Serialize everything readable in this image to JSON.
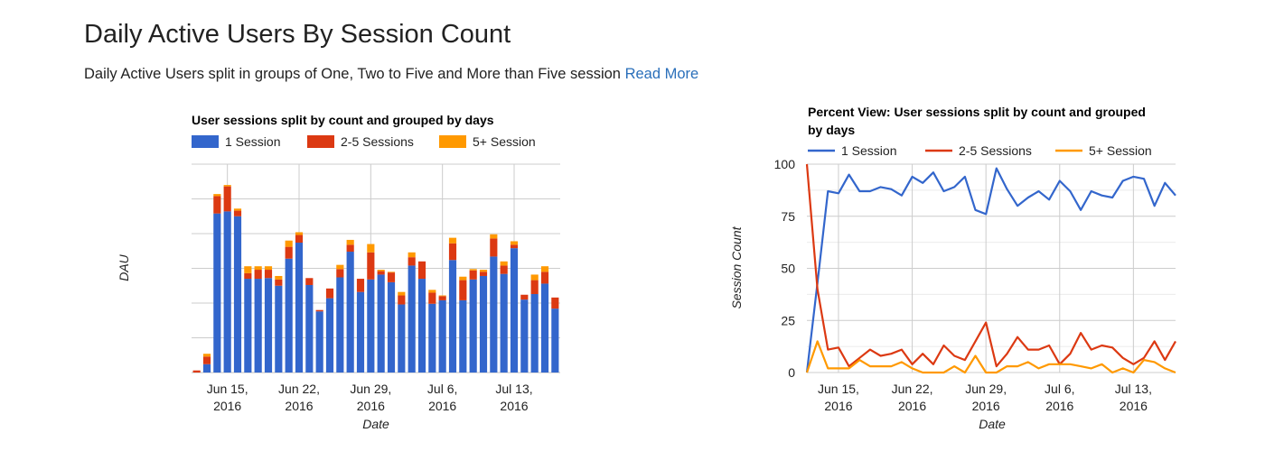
{
  "page": {
    "title": "Daily Active Users By Session Count",
    "subtitle": "Daily Active Users split in groups of One, Two to Five and More than Five session",
    "read_more": "Read More"
  },
  "colors": {
    "one": "#3366cc",
    "two_five": "#dc3912",
    "five_plus": "#ff9900",
    "grid": "#cccccc"
  },
  "chart_data": [
    {
      "type": "bar",
      "stacked": true,
      "title": "User sessions split by count and grouped by days",
      "xlabel": "Date",
      "ylabel": "DAU",
      "y_tick_labels_visible": false,
      "ylim": [
        0,
        300
      ],
      "x_ticks": [
        {
          "day": 3,
          "line1": "Jun 15,",
          "line2": "2016"
        },
        {
          "day": 10,
          "line1": "Jun 22,",
          "line2": "2016"
        },
        {
          "day": 17,
          "line1": "Jun 29,",
          "line2": "2016"
        },
        {
          "day": 24,
          "line1": "Jul 6,",
          "line2": "2016"
        },
        {
          "day": 31,
          "line1": "Jul 13,",
          "line2": "2016"
        }
      ],
      "series": [
        {
          "name": "1 Session",
          "color_key": "one",
          "values": [
            0,
            12,
            229,
            232,
            225,
            135,
            135,
            136,
            125,
            164,
            187,
            126,
            88,
            107,
            137,
            174,
            116,
            134,
            141,
            130,
            98,
            154,
            135,
            99,
            104,
            162,
            104,
            134,
            139,
            167,
            142,
            179,
            105,
            113,
            128,
            92
          ]
        },
        {
          "name": "2-5 Sessions",
          "color_key": "two_five",
          "values": [
            3,
            11,
            25,
            36,
            8,
            8,
            13,
            12,
            9,
            17,
            11,
            10,
            2,
            14,
            12,
            10,
            19,
            39,
            5,
            14,
            13,
            12,
            25,
            16,
            6,
            24,
            29,
            13,
            6,
            26,
            12,
            5,
            7,
            20,
            17,
            16
          ]
        },
        {
          "name": "5+ Session",
          "color_key": "five_plus",
          "values": [
            0,
            4,
            3,
            2,
            3,
            10,
            5,
            5,
            5,
            9,
            4,
            0,
            0,
            0,
            6,
            7,
            0,
            12,
            2,
            1,
            5,
            7,
            0,
            4,
            1,
            8,
            5,
            2,
            3,
            6,
            6,
            5,
            0,
            8,
            8,
            0
          ]
        }
      ]
    },
    {
      "type": "line",
      "title": "Percent View: User sessions split by count and grouped by days",
      "title_line1": "Percent View: User sessions split by count and grouped",
      "title_line2": "by days",
      "xlabel": "Date",
      "ylabel": "Session Count",
      "ylim": [
        0,
        100
      ],
      "y_ticks": [
        0,
        25,
        50,
        75,
        100
      ],
      "x_ticks": [
        {
          "day": 3,
          "line1": "Jun 15,",
          "line2": "2016"
        },
        {
          "day": 10,
          "line1": "Jun 22,",
          "line2": "2016"
        },
        {
          "day": 17,
          "line1": "Jun 29,",
          "line2": "2016"
        },
        {
          "day": 24,
          "line1": "Jul 6,",
          "line2": "2016"
        },
        {
          "day": 31,
          "line1": "Jul 13,",
          "line2": "2016"
        }
      ],
      "series": [
        {
          "name": "1 Session",
          "color_key": "one",
          "values": [
            0,
            43,
            87,
            86,
            95,
            87,
            87,
            89,
            88,
            85,
            94,
            91,
            96,
            87,
            89,
            94,
            78,
            76,
            98,
            88,
            80,
            84,
            87,
            83,
            92,
            87,
            78,
            87,
            85,
            84,
            92,
            94,
            93,
            80,
            91,
            85
          ]
        },
        {
          "name": "2-5 Sessions",
          "color_key": "two_five",
          "values": [
            100,
            40,
            11,
            12,
            3,
            7,
            11,
            8,
            9,
            11,
            4,
            9,
            4,
            13,
            8,
            6,
            15,
            24,
            3,
            9,
            17,
            11,
            11,
            13,
            4,
            9,
            19,
            11,
            13,
            12,
            7,
            4,
            7,
            15,
            6,
            15
          ]
        },
        {
          "name": "5+ Session",
          "color_key": "five_plus",
          "values": [
            0,
            15,
            2,
            2,
            2,
            6,
            3,
            3,
            3,
            5,
            2,
            0,
            0,
            0,
            3,
            0,
            8,
            0,
            0,
            3,
            3,
            5,
            2,
            4,
            4,
            4,
            3,
            2,
            4,
            0,
            2,
            0,
            6,
            5,
            2,
            0
          ]
        }
      ]
    }
  ]
}
